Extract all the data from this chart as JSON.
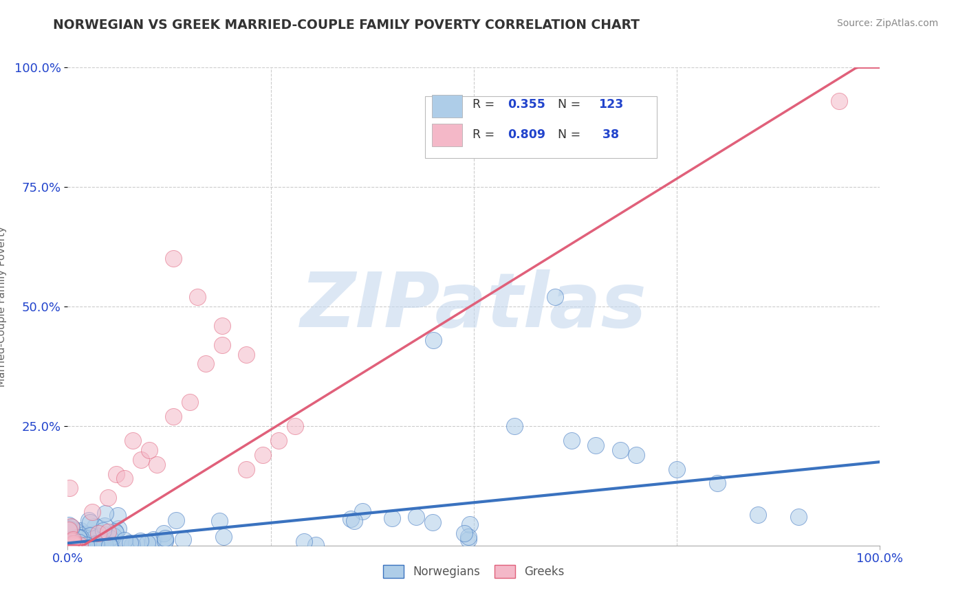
{
  "title": "NORWEGIAN VS GREEK MARRIED-COUPLE FAMILY POVERTY CORRELATION CHART",
  "source_text": "Source: ZipAtlas.com",
  "ylabel": "Married-Couple Family Poverty",
  "watermark": "ZIPatlas",
  "blue_R": 0.355,
  "blue_N": 123,
  "pink_R": 0.809,
  "pink_N": 38,
  "blue_color": "#aecde8",
  "blue_line_color": "#3a72bf",
  "pink_color": "#f4b8c8",
  "pink_line_color": "#e0607a",
  "legend_label_blue": "Norwegians",
  "legend_label_pink": "Greeks",
  "title_color": "#333333",
  "source_color": "#888888",
  "stat_color": "#2244cc",
  "axis_label_color": "#2244cc",
  "background_color": "#ffffff",
  "watermark_color": "#c5d8ee",
  "blue_line_slope": 0.17,
  "blue_line_intercept": 0.005,
  "pink_line_slope": 1.05,
  "pink_line_intercept": -0.02
}
